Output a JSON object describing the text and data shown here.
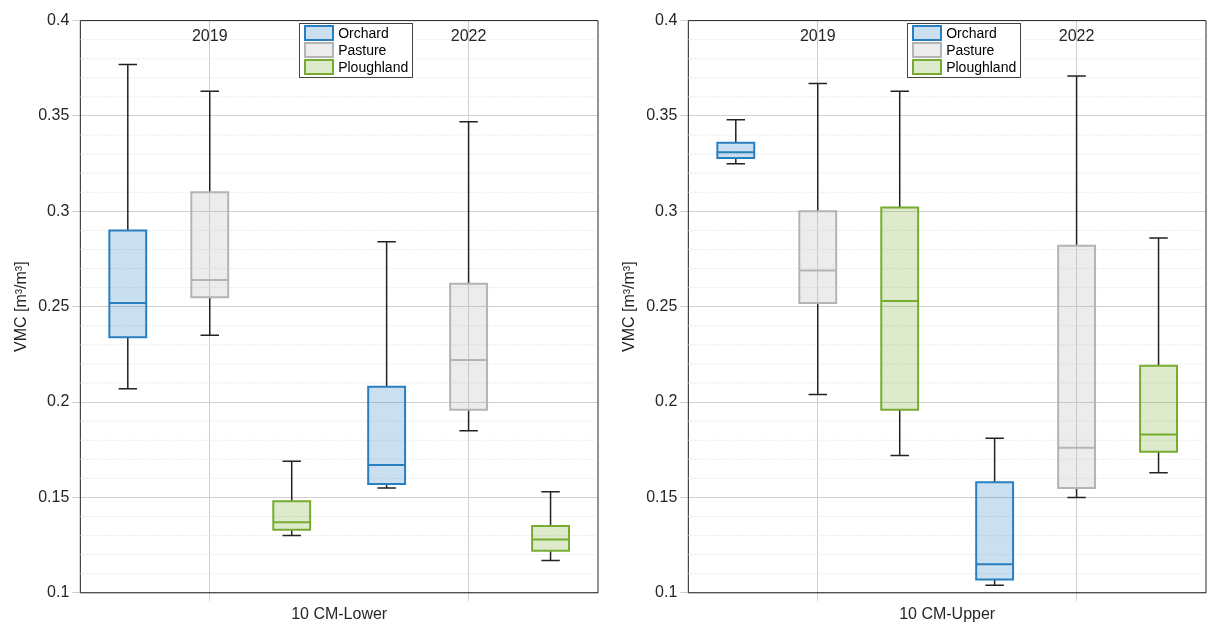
{
  "chart_data": [
    {
      "type": "box",
      "xlabel": "10 CM-Lower",
      "ylabel": "VMC [m³/m³]",
      "categories": [
        "2019",
        "2022"
      ],
      "ylim": [
        0.1,
        0.4
      ],
      "yticks": [
        0.1,
        0.15,
        0.2,
        0.25,
        0.3,
        0.35,
        0.4
      ],
      "grid": true,
      "legend": "top",
      "series": [
        {
          "name": "Orchard",
          "color": "#2a7fc0",
          "boxes": [
            {
              "low": 0.207,
              "q1": 0.234,
              "median": 0.252,
              "q3": 0.29,
              "high": 0.377
            },
            {
              "low": 0.155,
              "q1": 0.157,
              "median": 0.167,
              "q3": 0.208,
              "high": 0.284
            }
          ]
        },
        {
          "name": "Pasture",
          "color": "#b4b4b4",
          "boxes": [
            {
              "low": 0.235,
              "q1": 0.255,
              "median": 0.264,
              "q3": 0.31,
              "high": 0.363
            },
            {
              "low": 0.185,
              "q1": 0.196,
              "median": 0.222,
              "q3": 0.262,
              "high": 0.347
            }
          ]
        },
        {
          "name": "Ploughland",
          "color": "#77ac30",
          "boxes": [
            {
              "low": 0.13,
              "q1": 0.133,
              "median": 0.137,
              "q3": 0.148,
              "high": 0.169
            },
            {
              "low": 0.117,
              "q1": 0.122,
              "median": 0.128,
              "q3": 0.135,
              "high": 0.153
            }
          ]
        }
      ]
    },
    {
      "type": "box",
      "xlabel": "10 CM-Upper",
      "ylabel": "VMC [m³/m³]",
      "categories": [
        "2019",
        "2022"
      ],
      "ylim": [
        0.1,
        0.4
      ],
      "yticks": [
        0.1,
        0.15,
        0.2,
        0.25,
        0.3,
        0.35,
        0.4
      ],
      "grid": true,
      "legend": "top",
      "series": [
        {
          "name": "Orchard",
          "color": "#2a7fc0",
          "boxes": [
            {
              "low": 0.325,
              "q1": 0.328,
              "median": 0.331,
              "q3": 0.336,
              "high": 0.348
            },
            {
              "low": 0.104,
              "q1": 0.107,
              "median": 0.115,
              "q3": 0.158,
              "high": 0.181
            }
          ]
        },
        {
          "name": "Pasture",
          "color": "#b4b4b4",
          "boxes": [
            {
              "low": 0.204,
              "q1": 0.252,
              "median": 0.269,
              "q3": 0.3,
              "high": 0.367
            },
            {
              "low": 0.15,
              "q1": 0.155,
              "median": 0.176,
              "q3": 0.282,
              "high": 0.371
            }
          ]
        },
        {
          "name": "Ploughland",
          "color": "#77ac30",
          "boxes": [
            {
              "low": 0.172,
              "q1": 0.196,
              "median": 0.253,
              "q3": 0.302,
              "high": 0.363
            },
            {
              "low": 0.163,
              "q1": 0.174,
              "median": 0.183,
              "q3": 0.219,
              "high": 0.286
            }
          ]
        }
      ]
    }
  ]
}
